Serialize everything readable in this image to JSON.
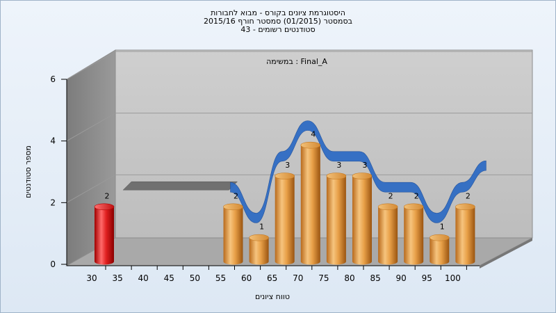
{
  "chart_data": {
    "type": "bar",
    "title_lines": [
      "היסטוגרמת ציונים בקורס - מבוא לחבורות",
      "בסמסטר  (01/2015)  סמסטר חורף 2015/16",
      "סטודנטים רשומים - 43"
    ],
    "annotation": "במשימה : Final_A",
    "xlabel": "טווח ציונים",
    "ylabel": "מספר סטודנטים",
    "categories": [
      "30",
      "35",
      "40",
      "45",
      "50",
      "55",
      "60",
      "65",
      "70",
      "75",
      "80",
      "85",
      "90",
      "95",
      "100"
    ],
    "values": [
      2,
      0,
      0,
      0,
      0,
      2,
      1,
      3,
      4,
      3,
      3,
      2,
      2,
      1,
      2
    ],
    "highlight_category": "30",
    "ylim": [
      0,
      6
    ],
    "yticks": [
      0,
      2,
      4,
      6
    ],
    "grid": true,
    "colors": {
      "bar": "#e8a048",
      "highlight_bar": "#e02020",
      "trend_ribbon": "#2f6cc4",
      "flat_ribbon": "#707070",
      "back_wall": "#c8c8c8",
      "side_wall": "#8a8a8a",
      "floor": "#a8a8a8"
    }
  }
}
